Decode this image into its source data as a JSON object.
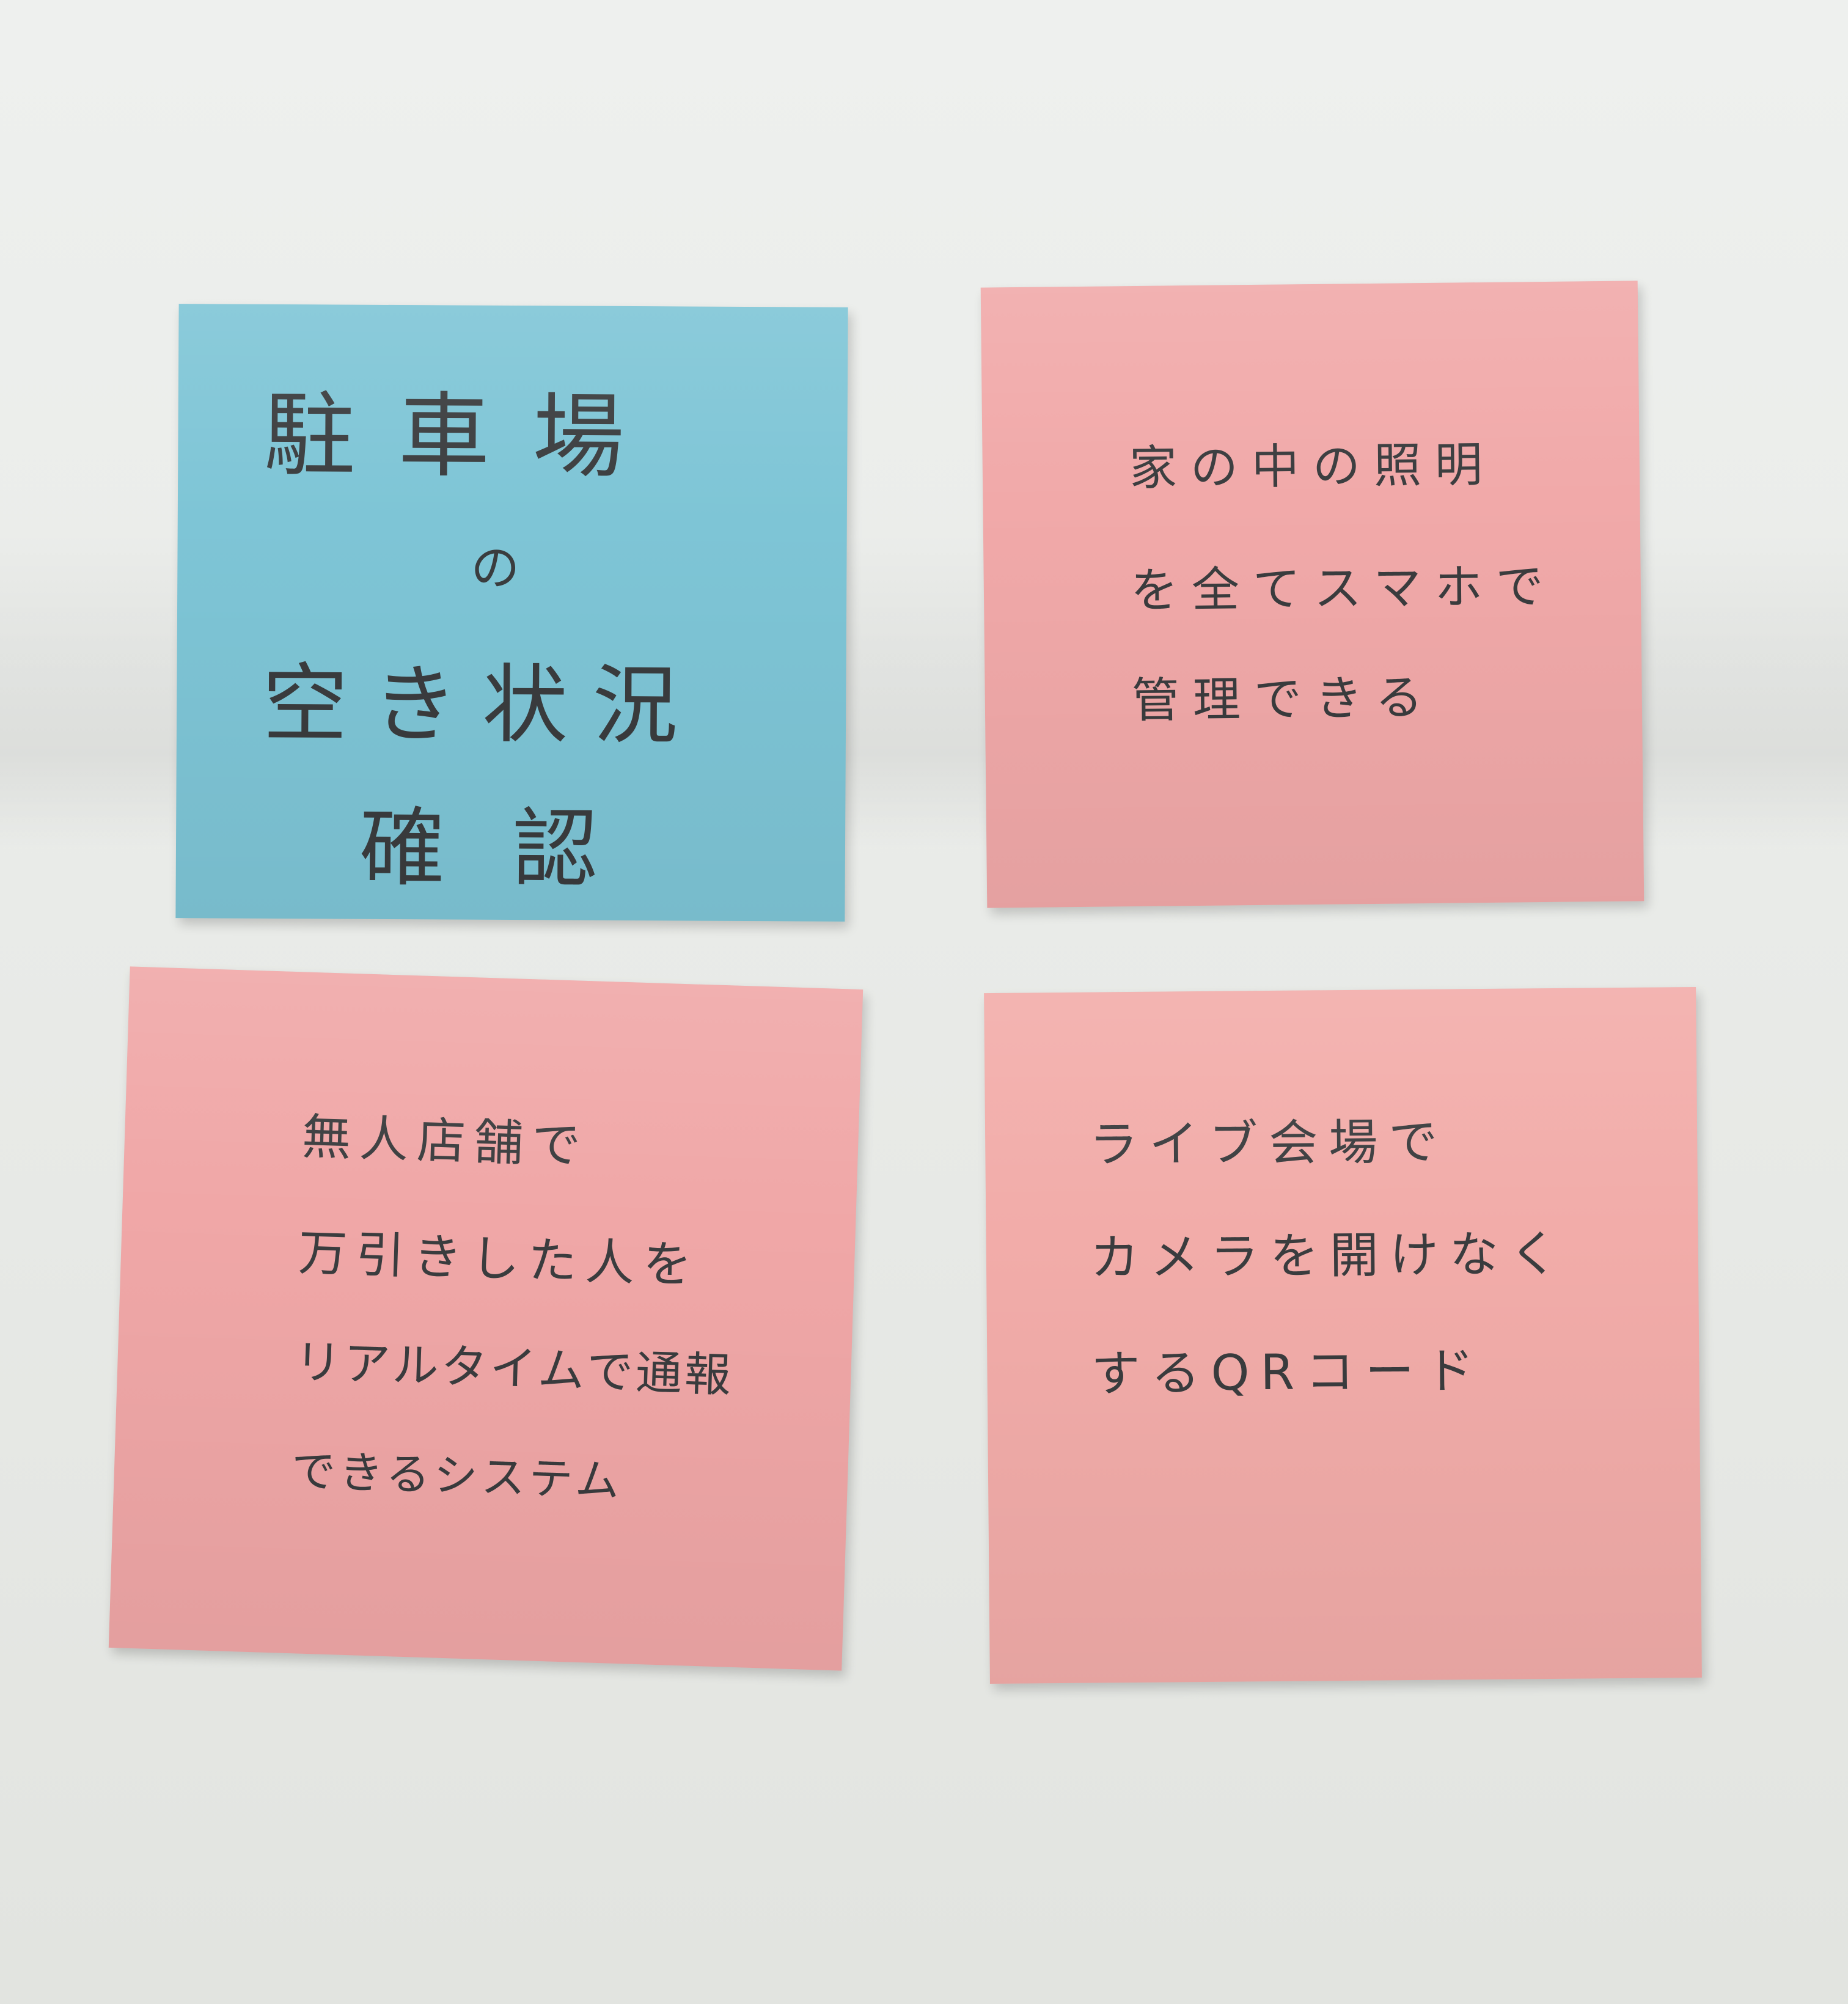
{
  "notes": {
    "blue": {
      "color": "#7ec5d6",
      "lines": [
        "駐車場",
        "の",
        "空き状況",
        "確認"
      ]
    },
    "top_right": {
      "color": "#f1a9a9",
      "lines": [
        "家の中の照明",
        "を全てスマホで",
        "管理できる"
      ]
    },
    "bottom_left": {
      "color": "#f0a7a7",
      "lines": [
        "無人店舗で",
        "万引きした人を",
        "リアルタイムで通報",
        "できるシステム"
      ]
    },
    "bottom_right": {
      "color": "#f2aca9",
      "lines": [
        "ライブ会場で",
        "カメラを開けなく",
        "するQRコード"
      ]
    }
  }
}
